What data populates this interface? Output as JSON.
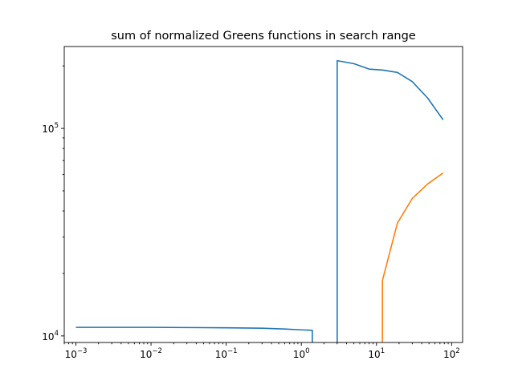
{
  "chart_data": {
    "type": "line",
    "title": "sum of normalized Greens functions in search range",
    "xlabel": "",
    "ylabel": "",
    "xscale": "log",
    "yscale": "log",
    "xlim": [
      0.0007,
      140
    ],
    "ylim": [
      9300,
      248000
    ],
    "grid": false,
    "legend": "none",
    "x_ticks": [
      {
        "value": 0.001,
        "base": "10",
        "exp": "−3"
      },
      {
        "value": 0.01,
        "base": "10",
        "exp": "−2"
      },
      {
        "value": 0.1,
        "base": "10",
        "exp": "−1"
      },
      {
        "value": 1,
        "base": "10",
        "exp": "0"
      },
      {
        "value": 10,
        "base": "10",
        "exp": "1"
      },
      {
        "value": 100,
        "base": "10",
        "exp": "2"
      }
    ],
    "y_ticks": [
      {
        "value": 10000,
        "base": "10",
        "exp": "4"
      },
      {
        "value": 100000,
        "base": "10",
        "exp": "5"
      }
    ],
    "series": [
      {
        "color": "#1f77b4",
        "segments": [
          [
            [
              0.001,
              11000
            ],
            [
              0.01,
              11000
            ],
            [
              0.1,
              10950
            ],
            [
              0.3,
              10900
            ],
            [
              0.6,
              10800
            ],
            [
              1.0,
              10700
            ],
            [
              1.4,
              10650
            ],
            [
              1.4,
              9300
            ]
          ],
          [
            [
              3.0,
              9300
            ],
            [
              3.0,
              212000
            ],
            [
              5.0,
              205000
            ],
            [
              8.0,
              193000
            ],
            [
              12.0,
              191000
            ],
            [
              19.0,
              186000
            ],
            [
              30.0,
              168000
            ],
            [
              48.0,
              140000
            ],
            [
              77.0,
              110000
            ]
          ]
        ]
      },
      {
        "color": "#ff7f0e",
        "segments": [
          [
            [
              12.0,
              9300
            ],
            [
              12.0,
              18500
            ],
            [
              19.0,
              35000
            ],
            [
              30.0,
              46000
            ],
            [
              48.0,
              54000
            ],
            [
              77.0,
              61000
            ]
          ]
        ]
      }
    ]
  }
}
